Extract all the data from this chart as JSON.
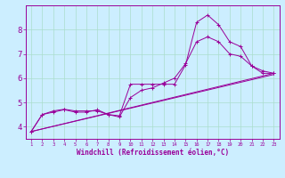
{
  "xlabel": "Windchill (Refroidissement éolien,°C)",
  "background_color": "#cceeff",
  "line_color": "#990099",
  "grid_color": "#aaddcc",
  "xlim": [
    0.5,
    23.5
  ],
  "ylim": [
    3.5,
    9.0
  ],
  "yticks": [
    4,
    5,
    6,
    7,
    8
  ],
  "xticks": [
    1,
    2,
    3,
    4,
    5,
    6,
    7,
    8,
    9,
    10,
    11,
    12,
    13,
    14,
    15,
    16,
    17,
    18,
    19,
    20,
    21,
    22,
    23
  ],
  "series1": {
    "x": [
      1,
      2,
      3,
      4,
      5,
      6,
      7,
      8,
      9,
      10,
      11,
      12,
      13,
      14,
      15,
      16,
      17,
      18,
      19,
      20,
      21,
      22,
      23
    ],
    "y": [
      3.8,
      4.5,
      4.6,
      4.7,
      4.6,
      4.6,
      4.7,
      4.5,
      4.45,
      5.75,
      5.75,
      5.75,
      5.75,
      5.75,
      6.55,
      8.3,
      8.6,
      8.2,
      7.5,
      7.3,
      6.5,
      6.2,
      6.2
    ]
  },
  "series2": {
    "x": [
      1,
      2,
      3,
      4,
      5,
      6,
      7,
      8,
      9,
      10,
      11,
      12,
      13,
      14,
      15,
      16,
      17,
      18,
      19,
      20,
      21,
      22,
      23
    ],
    "y": [
      3.8,
      4.5,
      4.65,
      4.72,
      4.65,
      4.65,
      4.65,
      4.5,
      4.4,
      5.2,
      5.5,
      5.6,
      5.8,
      6.0,
      6.6,
      7.5,
      7.7,
      7.5,
      7.0,
      6.9,
      6.5,
      6.3,
      6.2
    ]
  },
  "line1": {
    "x": [
      1,
      23
    ],
    "y": [
      3.8,
      6.2
    ]
  },
  "line2": {
    "x": [
      1,
      23
    ],
    "y": [
      3.8,
      6.15
    ]
  }
}
